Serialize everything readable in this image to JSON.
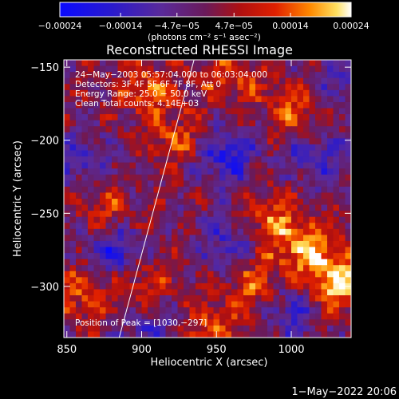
{
  "chart_data": {
    "type": "heatmap",
    "title": "Reconstructed RHESSI Image",
    "xlabel": "Heliocentric X (arcsec)",
    "ylabel": "Heliocentric Y (arcsec)",
    "xlim": [
      848,
      1040
    ],
    "ylim": [
      -335,
      -145
    ],
    "x_ticks": [
      850,
      900,
      950,
      1000
    ],
    "x_tick_labels": [
      "850",
      "900",
      "950",
      "1000"
    ],
    "y_ticks": [
      -150,
      -200,
      -250,
      -300
    ],
    "y_tick_labels": [
      "−150",
      "−200",
      "−250",
      "−300"
    ],
    "colorbar": {
      "range": [
        -0.00024,
        0.00024
      ],
      "ticks": [
        -0.00024,
        -0.00014,
        -4.7e-05,
        4.7e-05,
        0.00014,
        0.00024
      ],
      "tick_labels": [
        "−0.00024",
        "−0.00014",
        "−4.7e−05",
        "4.7e−05",
        "0.00014",
        "0.00024"
      ],
      "unit_label": "(photons cm⁻² s⁻¹ asec⁻²)"
    },
    "annotations": [
      "24−May−2003 05:57:04.000 to 06:03:04.000",
      "Detectors: 3F 4F 5F 6F 7F 8F, Att 0",
      "Energy Range: 25.0 − 50.0 keV",
      "Clean    Total counts: 4.14E+03"
    ],
    "peak_label": "Position of Peak = [1030,−297]",
    "peak_position": [
      1030,
      -297
    ],
    "limb_line": [
      [
        885,
        -335
      ],
      [
        935,
        -145
      ]
    ],
    "hot_spots": [
      {
        "x": 1030,
        "y": -297,
        "intensity": 1.0
      },
      {
        "x": 1010,
        "y": -275,
        "intensity": 0.75
      },
      {
        "x": 985,
        "y": -255,
        "intensity": 0.7
      },
      {
        "x": 975,
        "y": -300,
        "intensity": 0.65
      },
      {
        "x": 1005,
        "y": -180,
        "intensity": 0.6
      },
      {
        "x": 905,
        "y": -165,
        "intensity": 0.62
      },
      {
        "x": 925,
        "y": -200,
        "intensity": 0.55
      },
      {
        "x": 875,
        "y": -250,
        "intensity": 0.55
      },
      {
        "x": 860,
        "y": -305,
        "intensity": 0.6
      },
      {
        "x": 945,
        "y": -330,
        "intensity": 0.55
      },
      {
        "x": 960,
        "y": -160,
        "intensity": 0.5
      },
      {
        "x": 900,
        "y": -300,
        "intensity": 0.5
      }
    ],
    "cold_spots": [
      {
        "x": 880,
        "y": -275,
        "intensity": -0.85
      },
      {
        "x": 955,
        "y": -210,
        "intensity": -0.8
      },
      {
        "x": 1015,
        "y": -210,
        "intensity": -0.6
      },
      {
        "x": 960,
        "y": -270,
        "intensity": -0.6
      },
      {
        "x": 1000,
        "y": -315,
        "intensity": -0.65
      },
      {
        "x": 860,
        "y": -215,
        "intensity": -0.5
      },
      {
        "x": 905,
        "y": -330,
        "intensity": -0.55
      },
      {
        "x": 1030,
        "y": -160,
        "intensity": -0.45
      }
    ]
  },
  "footer": {
    "date_text": "1−May−2022 20:06"
  }
}
